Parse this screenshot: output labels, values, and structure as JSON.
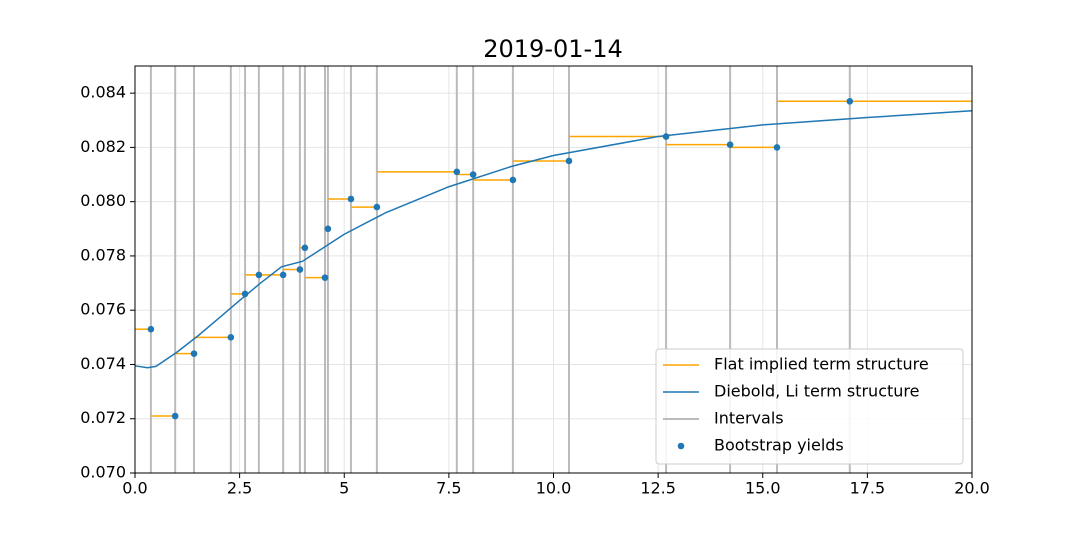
{
  "chart_data": {
    "type": "line",
    "title": "2019-01-14",
    "xlim": [
      0,
      20
    ],
    "ylim": [
      0.07,
      0.085
    ],
    "xticks": [
      {
        "value": 0,
        "label": "0.0"
      },
      2.5,
      5,
      7.5,
      {
        "value": 10,
        "label": "10.0"
      },
      12.5,
      {
        "value": 15,
        "label": "15.0"
      },
      17.5,
      {
        "value": 20,
        "label": "20.0"
      }
    ],
    "yticks": [
      {
        "value": 0.07,
        "label": "0.070"
      },
      0.072,
      0.074,
      0.076,
      0.078,
      {
        "value": 0.08,
        "label": "0.080"
      },
      0.082,
      0.084
    ],
    "grid": true,
    "legend": "lower right",
    "series": [
      {
        "name": "Flat implied term structure",
        "color": "#ffa500",
        "x0": [
          0,
          0.38,
          0.96,
          1.41,
          2.29,
          2.63,
          3.54,
          3.94,
          4.06,
          4.54,
          4.61,
          5.16,
          5.78,
          7.69,
          8.08,
          9.03,
          10.37,
          12.69,
          14.22,
          15.34
        ],
        "x1": [
          0.38,
          0.96,
          1.41,
          2.29,
          2.63,
          3.54,
          3.94,
          4.06,
          4.54,
          4.61,
          5.16,
          5.78,
          7.69,
          8.08,
          9.03,
          10.37,
          12.69,
          14.22,
          15.34,
          20
        ],
        "values": [
          0.0753,
          0.0721,
          0.0744,
          0.075,
          0.0766,
          0.0773,
          0.0775,
          0.0783,
          0.0772,
          0.079,
          0.0801,
          0.0798,
          0.0811,
          0.081,
          0.0808,
          0.0815,
          0.0824,
          0.0821,
          0.082,
          0.0837
        ]
      },
      {
        "name": "Diebold, Li term structure",
        "color": "#1f77b4",
        "x": [
          0,
          0.3,
          0.5,
          1,
          1.5,
          2,
          2.5,
          3,
          3.5,
          4,
          5,
          6,
          7.5,
          9,
          10,
          12.5,
          15,
          17.5,
          20
        ],
        "values": [
          0.07395,
          0.07388,
          0.07393,
          0.07445,
          0.07505,
          0.0757,
          0.07636,
          0.077,
          0.0776,
          0.0778,
          0.0788,
          0.0796,
          0.08055,
          0.0813,
          0.0817,
          0.0824,
          0.08283,
          0.0831,
          0.08335
        ]
      },
      {
        "name": "Intervals",
        "color": "#bbbbbb",
        "x": [
          0.38,
          0.96,
          1.41,
          2.29,
          2.63,
          2.96,
          3.54,
          3.94,
          4.06,
          4.54,
          4.61,
          5.16,
          5.78,
          7.69,
          8.08,
          9.03,
          10.37,
          12.69,
          14.22,
          15.34,
          17.08
        ]
      },
      {
        "name": "Bootstrap yields",
        "color": "#1f77b4",
        "x": [
          0.38,
          0.96,
          1.41,
          2.29,
          2.63,
          2.96,
          3.54,
          3.94,
          4.06,
          4.54,
          4.61,
          5.16,
          5.78,
          7.69,
          8.08,
          9.03,
          10.37,
          12.69,
          14.22,
          15.34,
          17.08
        ],
        "values": [
          0.0753,
          0.0721,
          0.0744,
          0.075,
          0.0766,
          0.0773,
          0.0773,
          0.0775,
          0.0783,
          0.0772,
          0.079,
          0.0801,
          0.0798,
          0.0811,
          0.081,
          0.0808,
          0.0815,
          0.0824,
          0.0821,
          0.082,
          0.0837
        ]
      }
    ]
  }
}
